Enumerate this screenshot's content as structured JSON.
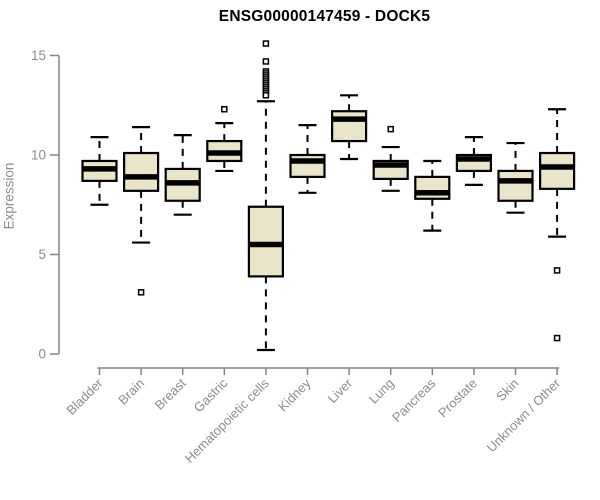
{
  "chart_data": {
    "type": "box",
    "title": "ENSG00000147459 - DOCK5",
    "ylabel": "Expression",
    "xlabel": "",
    "ylim": [
      0,
      15
    ],
    "yticks": [
      0,
      5,
      10,
      15
    ],
    "grid": false,
    "legend": false,
    "categories": [
      "Bladder",
      "Brain",
      "Breast",
      "Gastric",
      "Hematopoietic cells",
      "Kidney",
      "Liver",
      "Lung",
      "Pancreas",
      "Prostate",
      "Skin",
      "Unknown / Other"
    ],
    "series": [
      {
        "name": "Bladder",
        "whisker_low": 7.5,
        "q1": 8.7,
        "median": 9.3,
        "q3": 9.7,
        "whisker_high": 10.9,
        "outliers": []
      },
      {
        "name": "Brain",
        "whisker_low": 5.6,
        "q1": 8.2,
        "median": 8.9,
        "q3": 10.1,
        "whisker_high": 11.4,
        "outliers": [
          3.1
        ]
      },
      {
        "name": "Breast",
        "whisker_low": 7.0,
        "q1": 7.7,
        "median": 8.6,
        "q3": 9.3,
        "whisker_high": 11.0,
        "outliers": []
      },
      {
        "name": "Gastric",
        "whisker_low": 9.2,
        "q1": 9.7,
        "median": 10.1,
        "q3": 10.7,
        "whisker_high": 11.6,
        "outliers": [
          12.3
        ]
      },
      {
        "name": "Hematopoietic cells",
        "whisker_low": 0.2,
        "q1": 3.9,
        "median": 5.5,
        "q3": 7.4,
        "whisker_high": 12.7,
        "outliers": [
          15.6,
          14.7,
          14.2,
          14.1,
          14.0,
          13.9,
          13.8,
          13.7,
          13.6,
          13.5,
          13.4,
          13.3,
          13.2,
          13.1,
          13.0
        ]
      },
      {
        "name": "Kidney",
        "whisker_low": 8.1,
        "q1": 8.9,
        "median": 9.7,
        "q3": 10.0,
        "whisker_high": 11.5,
        "outliers": []
      },
      {
        "name": "Liver",
        "whisker_low": 9.8,
        "q1": 10.7,
        "median": 11.8,
        "q3": 12.2,
        "whisker_high": 13.0,
        "outliers": []
      },
      {
        "name": "Lung",
        "whisker_low": 8.2,
        "q1": 8.8,
        "median": 9.5,
        "q3": 9.7,
        "whisker_high": 10.4,
        "outliers": [
          11.3
        ]
      },
      {
        "name": "Pancreas",
        "whisker_low": 6.2,
        "q1": 7.8,
        "median": 8.1,
        "q3": 8.9,
        "whisker_high": 9.7,
        "outliers": []
      },
      {
        "name": "Prostate",
        "whisker_low": 8.5,
        "q1": 9.2,
        "median": 9.8,
        "q3": 10.0,
        "whisker_high": 10.9,
        "outliers": []
      },
      {
        "name": "Skin",
        "whisker_low": 7.1,
        "q1": 7.7,
        "median": 8.7,
        "q3": 9.2,
        "whisker_high": 10.6,
        "outliers": []
      },
      {
        "name": "Unknown / Other",
        "whisker_low": 5.9,
        "q1": 8.3,
        "median": 9.4,
        "q3": 10.1,
        "whisker_high": 12.3,
        "outliers": [
          4.2,
          0.8
        ]
      }
    ],
    "style": {
      "background": "#FFFFFF",
      "box_fill": "#EAE4C9",
      "box_border": "#000000",
      "median_color": "#000000",
      "whisker_color": "#000000",
      "outlier_color": "#000000",
      "axis_color": "#848484",
      "tick_label_color": "#8C8C8C",
      "title_color": "#000000"
    }
  }
}
